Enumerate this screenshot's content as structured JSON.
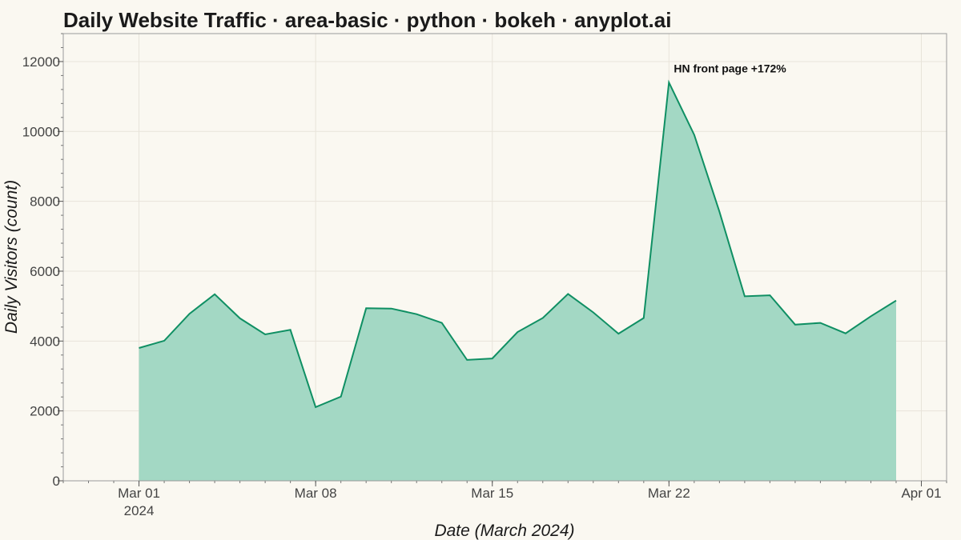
{
  "chart_data": {
    "type": "area",
    "title": "Daily Website Traffic · area-basic · python · bokeh · anyplot.ai",
    "xlabel": "Date (March 2024)",
    "ylabel": "Daily Visitors (count)",
    "x_tick_labels": [
      {
        "date": "2024-03-01",
        "label": "Mar 01",
        "sublabel": "2024"
      },
      {
        "date": "2024-03-08",
        "label": "Mar 08",
        "sublabel": ""
      },
      {
        "date": "2024-03-15",
        "label": "Mar 15",
        "sublabel": ""
      },
      {
        "date": "2024-03-22",
        "label": "Mar 22",
        "sublabel": ""
      },
      {
        "date": "2024-04-01",
        "label": "Apr 01",
        "sublabel": ""
      }
    ],
    "y_ticks": [
      0,
      2000,
      4000,
      6000,
      8000,
      10000,
      12000
    ],
    "xlim": [
      "2024-02-27",
      "2024-04-02"
    ],
    "ylim": [
      0,
      12800
    ],
    "grid": true,
    "colors": {
      "line": "#0F8F63",
      "fill": "#A3D8C4",
      "background": "#FAF8F1"
    },
    "series": [
      {
        "x": [
          "2024-03-01",
          "2024-03-02",
          "2024-03-03",
          "2024-03-04",
          "2024-03-05",
          "2024-03-06",
          "2024-03-07",
          "2024-03-08",
          "2024-03-09",
          "2024-03-10",
          "2024-03-11",
          "2024-03-12",
          "2024-03-13",
          "2024-03-14",
          "2024-03-15",
          "2024-03-16",
          "2024-03-17",
          "2024-03-18",
          "2024-03-19",
          "2024-03-20",
          "2024-03-21",
          "2024-03-22",
          "2024-03-23",
          "2024-03-24",
          "2024-03-25",
          "2024-03-26",
          "2024-03-27",
          "2024-03-28",
          "2024-03-29",
          "2024-03-30",
          "2024-03-31"
        ],
        "values": [
          3800,
          4010,
          4780,
          5340,
          4650,
          4190,
          4320,
          2110,
          2410,
          4940,
          4930,
          4770,
          4520,
          3460,
          3500,
          4260,
          4660,
          5350,
          4820,
          4210,
          4660,
          11400,
          9900,
          7700,
          5280,
          5310,
          4470,
          4520,
          4220,
          4710,
          5160
        ]
      }
    ],
    "annotations": [
      {
        "text": "HN front page  +172%",
        "x": "2024-03-22",
        "y": 11800
      }
    ]
  }
}
